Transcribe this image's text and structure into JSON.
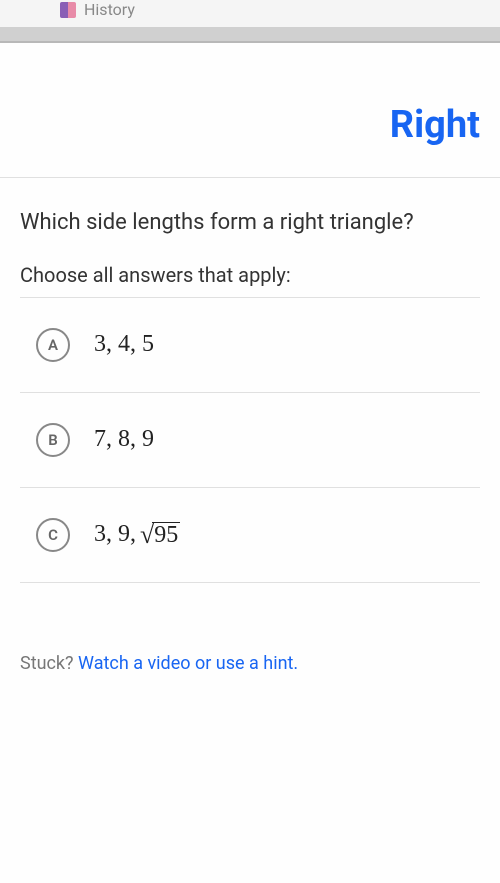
{
  "topbar": {
    "label": "History"
  },
  "header": {
    "title": "Right"
  },
  "question": {
    "prompt": "Which side lengths form a right triangle?",
    "instruction": "Choose all answers that apply:"
  },
  "options": [
    {
      "letter": "A",
      "text": "3, 4, 5",
      "has_sqrt": false
    },
    {
      "letter": "B",
      "text": "7, 8, 9",
      "has_sqrt": false
    },
    {
      "letter": "C",
      "text": "3, 9, ",
      "has_sqrt": true,
      "sqrt_value": "95"
    }
  ],
  "hint": {
    "prefix": "Stuck? ",
    "link": "Watch a video or use a hint."
  },
  "colors": {
    "primary": "#1865f2",
    "text": "#333",
    "border": "#e0e0e0",
    "circle_border": "#888"
  }
}
